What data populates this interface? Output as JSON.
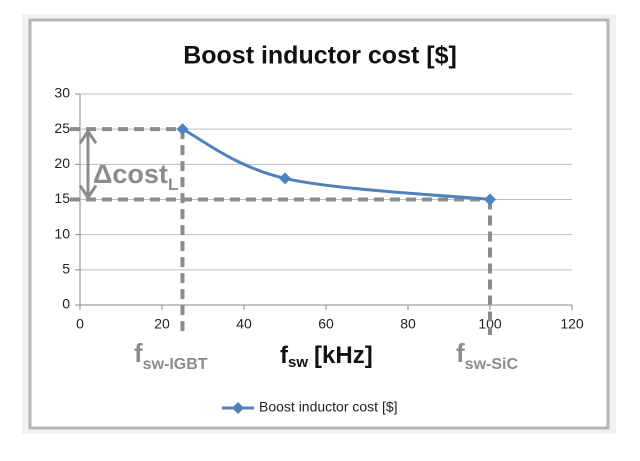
{
  "chart_data": {
    "type": "line",
    "title": "Boost inductor cost [$]",
    "x": [
      25,
      50,
      100
    ],
    "series": [
      {
        "name": "Boost inductor cost [$]",
        "color": "#4f81bd",
        "values": [
          25,
          18,
          15
        ]
      }
    ],
    "xlim": [
      0,
      120
    ],
    "xticks": [
      0,
      20,
      40,
      60,
      80,
      100,
      120
    ],
    "ylim": [
      0,
      30
    ],
    "yticks": [
      0,
      5,
      10,
      15,
      20,
      25,
      30
    ],
    "grid": true,
    "legend": "bottom",
    "x_label": {
      "text": "f",
      "sub": "sw",
      "unit": "[kHz]"
    },
    "annotations": [
      {
        "text": "f",
        "sub": "sw-IGBT"
      },
      {
        "text": "f",
        "sub": "sw-SiC"
      },
      {
        "text": "Δcost",
        "sub": "L"
      }
    ]
  }
}
